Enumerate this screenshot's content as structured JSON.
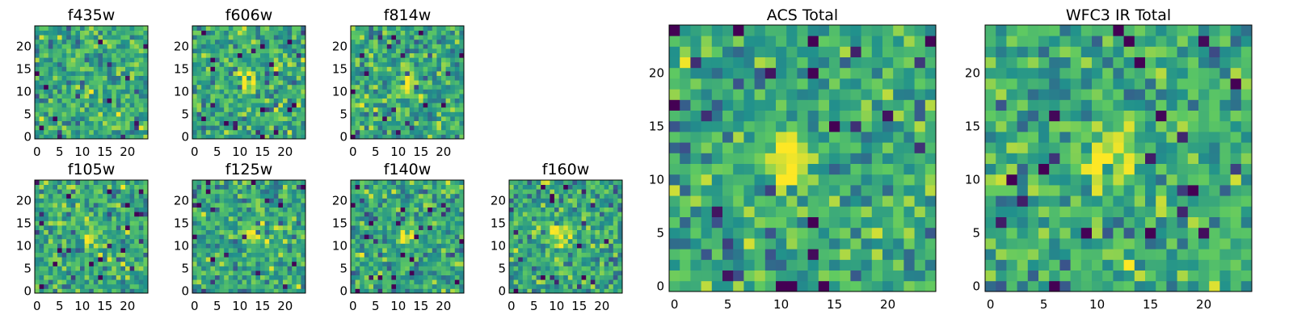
{
  "colormap": [
    "#440154",
    "#3b528b",
    "#21918c",
    "#5ec962",
    "#fde725"
  ],
  "panels": [
    {
      "title": "f435w",
      "xticks": [
        "0",
        "5",
        "10",
        "15",
        "20"
      ],
      "yticks": [
        "0",
        "5",
        "10",
        "15",
        "20"
      ]
    },
    {
      "title": "f606w",
      "xticks": [
        "0",
        "5",
        "10",
        "15",
        "20"
      ],
      "yticks": [
        "0",
        "5",
        "10",
        "15",
        "20"
      ]
    },
    {
      "title": "f814w",
      "xticks": [
        "0",
        "5",
        "10",
        "15",
        "20"
      ],
      "yticks": [
        "0",
        "5",
        "10",
        "15",
        "20"
      ]
    },
    {
      "title": "f105w",
      "xticks": [
        "0",
        "5",
        "10",
        "15",
        "20"
      ],
      "yticks": [
        "0",
        "5",
        "10",
        "15",
        "20"
      ]
    },
    {
      "title": "f125w",
      "xticks": [
        "0",
        "5",
        "10",
        "15",
        "20"
      ],
      "yticks": [
        "0",
        "5",
        "10",
        "15",
        "20"
      ]
    },
    {
      "title": "f140w",
      "xticks": [
        "0",
        "5",
        "10",
        "15",
        "20"
      ],
      "yticks": [
        "0",
        "5",
        "10",
        "15",
        "20"
      ]
    },
    {
      "title": "f160w",
      "xticks": [
        "0",
        "5",
        "10",
        "15",
        "20"
      ],
      "yticks": [
        "0",
        "5",
        "10",
        "15",
        "20"
      ]
    },
    {
      "title": "ACS Total",
      "xticks": [
        "0",
        "5",
        "10",
        "15",
        "20"
      ],
      "yticks": [
        "0",
        "5",
        "10",
        "15",
        "20"
      ]
    },
    {
      "title": "WFC3 IR Total",
      "xticks": [
        "0",
        "5",
        "10",
        "15",
        "20"
      ],
      "yticks": [
        "0",
        "5",
        "10",
        "15",
        "20"
      ]
    }
  ],
  "chart_data": [
    {
      "type": "heatmap",
      "title": "f435w",
      "grid": [
        25,
        25
      ],
      "xlim": [
        0,
        25
      ],
      "ylim": [
        0,
        25
      ],
      "colormap": "viridis",
      "bright_center": [
        12,
        11
      ],
      "noise_seed": 11,
      "center_strength": 0.1
    },
    {
      "type": "heatmap",
      "title": "f606w",
      "grid": [
        25,
        25
      ],
      "xlim": [
        0,
        25
      ],
      "ylim": [
        0,
        25
      ],
      "colormap": "viridis",
      "bright_center": [
        12,
        12
      ],
      "noise_seed": 23,
      "center_strength": 0.45
    },
    {
      "type": "heatmap",
      "title": "f814w",
      "grid": [
        25,
        25
      ],
      "xlim": [
        0,
        25
      ],
      "ylim": [
        0,
        25
      ],
      "colormap": "viridis",
      "bright_center": [
        12,
        12
      ],
      "noise_seed": 37,
      "center_strength": 0.45
    },
    {
      "type": "heatmap",
      "title": "f105w",
      "grid": [
        25,
        25
      ],
      "xlim": [
        0,
        25
      ],
      "ylim": [
        0,
        25
      ],
      "colormap": "viridis",
      "bright_center": [
        12,
        12
      ],
      "noise_seed": 41,
      "center_strength": 0.25
    },
    {
      "type": "heatmap",
      "title": "f125w",
      "grid": [
        25,
        25
      ],
      "xlim": [
        0,
        25
      ],
      "ylim": [
        0,
        25
      ],
      "colormap": "viridis",
      "bright_center": [
        13,
        13
      ],
      "noise_seed": 53,
      "center_strength": 0.3
    },
    {
      "type": "heatmap",
      "title": "f140w",
      "grid": [
        25,
        25
      ],
      "xlim": [
        0,
        25
      ],
      "ylim": [
        0,
        25
      ],
      "colormap": "viridis",
      "bright_center": [
        12,
        12
      ],
      "noise_seed": 67,
      "center_strength": 0.3
    },
    {
      "type": "heatmap",
      "title": "f160w",
      "grid": [
        25,
        25
      ],
      "xlim": [
        0,
        25
      ],
      "ylim": [
        0,
        25
      ],
      "colormap": "viridis",
      "bright_center": [
        11,
        13
      ],
      "noise_seed": 79,
      "center_strength": 0.45
    },
    {
      "type": "heatmap",
      "title": "ACS Total",
      "grid": [
        25,
        25
      ],
      "xlim": [
        0,
        25
      ],
      "ylim": [
        0,
        25
      ],
      "colormap": "viridis",
      "bright_center": [
        11,
        12
      ],
      "noise_seed": 83,
      "center_strength": 0.55
    },
    {
      "type": "heatmap",
      "title": "WFC3 IR Total",
      "grid": [
        25,
        25
      ],
      "xlim": [
        0,
        25
      ],
      "ylim": [
        0,
        25
      ],
      "colormap": "viridis",
      "bright_center": [
        11,
        12
      ],
      "noise_seed": 97,
      "center_strength": 0.45
    }
  ]
}
